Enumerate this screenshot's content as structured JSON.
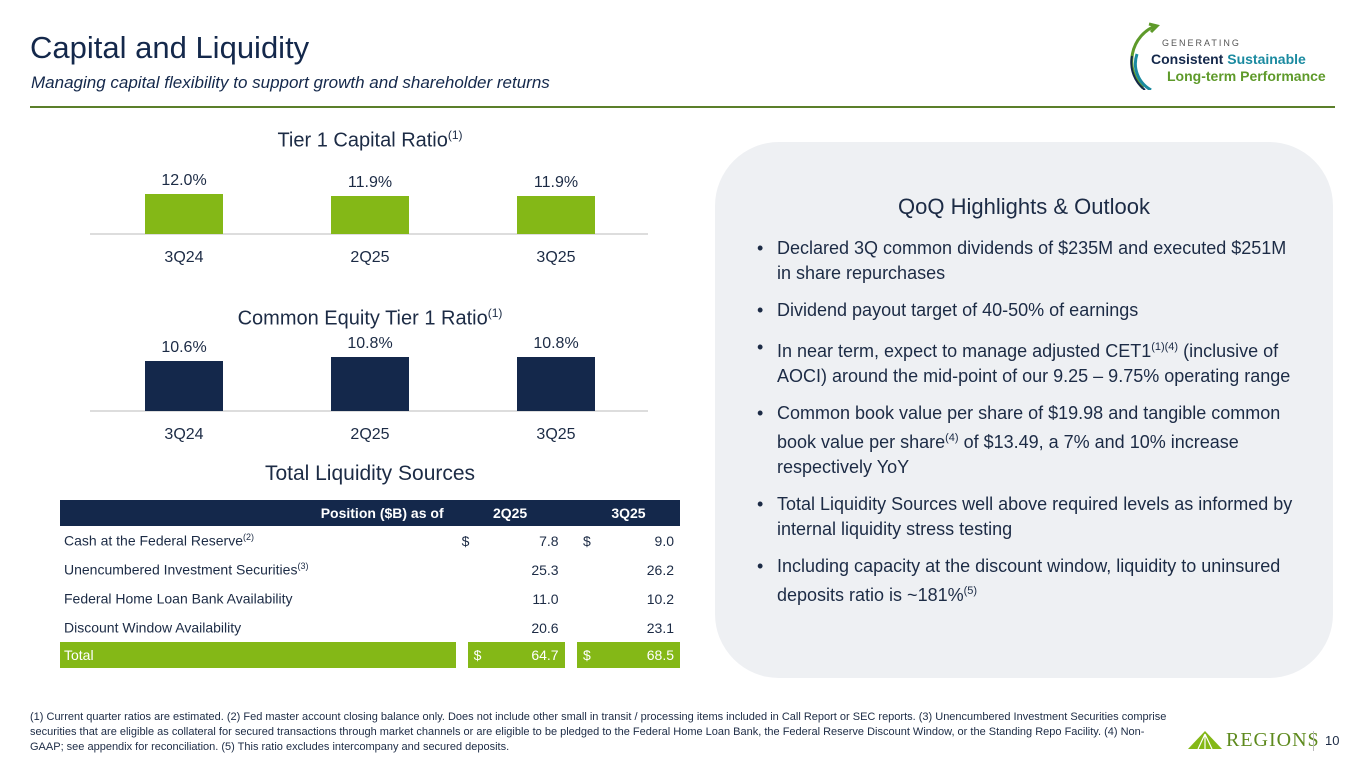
{
  "header": {
    "title": "Capital and Liquidity",
    "subtitle": "Managing capital flexibility to support growth and shareholder returns"
  },
  "logo": {
    "line1": "GENERATING",
    "line2a": "Consistent",
    "line2b": "Sustainable",
    "line3": "Long-term Performance"
  },
  "chart_data": [
    {
      "type": "bar",
      "title": "Tier 1 Capital Ratio",
      "title_note": "(1)",
      "categories": [
        "3Q24",
        "2Q25",
        "3Q25"
      ],
      "values": [
        12.0,
        11.9,
        11.9
      ],
      "labels": [
        "12.0%",
        "11.9%",
        "11.9%"
      ],
      "color": "#84b817"
    },
    {
      "type": "bar",
      "title": "Common Equity Tier 1 Ratio",
      "title_note": "(1)",
      "categories": [
        "3Q24",
        "2Q25",
        "3Q25"
      ],
      "values": [
        10.6,
        10.8,
        10.8
      ],
      "labels": [
        "10.6%",
        "10.8%",
        "10.8%"
      ],
      "color": "#14284b"
    }
  ],
  "liquidity": {
    "title": "Total Liquidity Sources",
    "headers": [
      "Position ($B) as of",
      "2Q25",
      "3Q25"
    ],
    "rows": [
      {
        "label": "Cash at the Federal Reserve",
        "note": "(2)",
        "d1": "$",
        "v1": "7.8",
        "d2": "$",
        "v2": "9.0"
      },
      {
        "label": "Unencumbered Investment Securities",
        "note": "(3)",
        "d1": "",
        "v1": "25.3",
        "d2": "",
        "v2": "26.2"
      },
      {
        "label": "Federal Home Loan Bank Availability",
        "note": "",
        "d1": "",
        "v1": "11.0",
        "d2": "",
        "v2": "10.2"
      },
      {
        "label": "Discount Window Availability",
        "note": "",
        "d1": "",
        "v1": "20.6",
        "d2": "",
        "v2": "23.1"
      }
    ],
    "total": {
      "label": "Total",
      "d1": "$",
      "v1": "64.7",
      "d2": "$",
      "v2": "68.5"
    }
  },
  "highlights": {
    "title": "QoQ Highlights & Outlook",
    "b1": "Declared 3Q common dividends of $235M and executed $251M in share repurchases",
    "b2": "Dividend payout target of 40-50% of earnings",
    "b3a": "In near term, expect to manage adjusted CET1",
    "b3n": "(1)(4)",
    "b3b": " (inclusive of AOCI) around the mid-point of our 9.25 – 9.75% operating range",
    "b4a": "Common book value per share of $19.98 and tangible common book value per share",
    "b4n": "(4)",
    "b4b": " of $13.49, a 7% and 10% increase respectively YoY",
    "b5": "Total Liquidity Sources well above required levels as informed by internal liquidity stress testing",
    "b6a": "Including capacity at the discount window, liquidity to uninsured deposits ratio is ~181%",
    "b6n": "(5)"
  },
  "footnotes": "(1) Current quarter ratios are estimated.  (2) Fed master account closing balance only. Does not include other small in transit / processing items included in Call Report or SEC reports. (3) Unencumbered Investment Securities comprise securities that are eligible as collateral for secured transactions through market channels or are eligible to be pledged to the Federal Home Loan Bank, the Federal Reserve Discount Window, or the Standing Repo Facility. (4) Non-GAAP; see appendix for reconciliation. (5) This ratio excludes intercompany and secured deposits.",
  "footer": {
    "brand": "REGIONS",
    "page": "10"
  }
}
